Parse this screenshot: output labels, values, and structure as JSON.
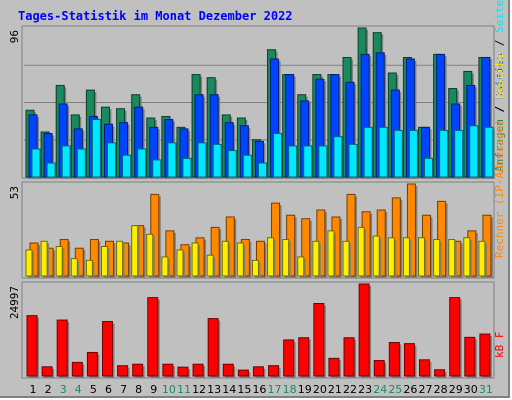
{
  "title": "Tages-Statistik im Monat Dezember 2022",
  "colors": {
    "background": "#c0c0c0",
    "title": "#0000ff",
    "anfragen": "#1a8a5e",
    "dateien": "#0044ff",
    "seiten": "#00e8ff",
    "rechner": "#ff8800",
    "besuche": "#ffee00",
    "kbf": "#ff0000",
    "day_weekday": "#000000",
    "day_weekend": "#1a8a5e"
  },
  "legend": {
    "top": [
      {
        "text": "Anfragen",
        "color": "#1a8a5e"
      },
      {
        "text": " / ",
        "color": "#000000"
      },
      {
        "text": "Dateien",
        "color": "#0044ff"
      },
      {
        "text": " / ",
        "color": "#000000"
      },
      {
        "text": "Seiten",
        "color": "#00e8ff"
      }
    ],
    "middle": [
      {
        "text": "Rechner (IP-Adressen)",
        "color": "#ff8800"
      },
      {
        "text": " / ",
        "color": "#000000"
      },
      {
        "text": "Besuche",
        "color": "#ffee00"
      }
    ],
    "bottom": [
      {
        "text": "kB F",
        "color": "#ff0000"
      }
    ]
  },
  "chart_data": [
    {
      "type": "bar",
      "name": "Anfragen / Dateien / Seiten",
      "ymax_label": "96",
      "ylim": [
        0,
        96
      ],
      "categories": [
        "1",
        "2",
        "3",
        "4",
        "5",
        "6",
        "7",
        "8",
        "9",
        "10",
        "11",
        "12",
        "13",
        "14",
        "15",
        "16",
        "17",
        "18",
        "19",
        "20",
        "21",
        "22",
        "23",
        "24",
        "25",
        "26",
        "27",
        "28",
        "29",
        "30",
        "31"
      ],
      "weekend_days": [
        "3",
        "4",
        "10",
        "11",
        "17",
        "18",
        "24",
        "25",
        "31"
      ],
      "series": [
        {
          "name": "Anfragen",
          "values": [
            43,
            29,
            59,
            40,
            56,
            45,
            44,
            53,
            38,
            39,
            32,
            66,
            64,
            40,
            38,
            24,
            82,
            66,
            53,
            66,
            66,
            77,
            96,
            93,
            67,
            77,
            32,
            79,
            57,
            68,
            77
          ]
        },
        {
          "name": "Dateien",
          "values": [
            40,
            28,
            47,
            31,
            39,
            34,
            35,
            45,
            32,
            37,
            31,
            53,
            53,
            35,
            33,
            23,
            76,
            66,
            49,
            63,
            66,
            61,
            79,
            80,
            56,
            76,
            32,
            79,
            47,
            59,
            77
          ]
        },
        {
          "name": "Seiten",
          "values": [
            18,
            9,
            20,
            18,
            37,
            22,
            14,
            18,
            11,
            22,
            12,
            22,
            21,
            17,
            14,
            9,
            28,
            20,
            20,
            20,
            26,
            21,
            32,
            32,
            30,
            30,
            12,
            30,
            30,
            33,
            32
          ]
        }
      ]
    },
    {
      "type": "bar",
      "name": "Rechner / Besuche",
      "ymax_label": "53",
      "ylim": [
        0,
        53
      ],
      "categories": [
        "1",
        "2",
        "3",
        "4",
        "5",
        "6",
        "7",
        "8",
        "9",
        "10",
        "11",
        "12",
        "13",
        "14",
        "15",
        "16",
        "17",
        "18",
        "19",
        "20",
        "21",
        "22",
        "23",
        "24",
        "25",
        "26",
        "27",
        "28",
        "29",
        "30",
        "31"
      ],
      "series": [
        {
          "name": "Rechner (IP-Adressen)",
          "values": [
            19,
            16,
            21,
            16,
            21,
            20,
            19,
            29,
            47,
            26,
            18,
            22,
            28,
            34,
            21,
            20,
            42,
            35,
            33,
            38,
            34,
            47,
            37,
            38,
            45,
            53,
            35,
            43,
            20,
            26,
            35
          ]
        },
        {
          "name": "Besuche",
          "values": [
            15,
            20,
            17,
            10,
            9,
            17,
            20,
            29,
            24,
            11,
            15,
            19,
            12,
            20,
            19,
            9,
            22,
            21,
            11,
            20,
            26,
            20,
            28,
            23,
            22,
            22,
            22,
            21,
            21,
            22,
            20
          ]
        }
      ]
    },
    {
      "type": "bar",
      "name": "kB F",
      "ymax_label": "24997",
      "ylim": [
        0,
        24997
      ],
      "categories": [
        "1",
        "2",
        "3",
        "4",
        "5",
        "6",
        "7",
        "8",
        "9",
        "10",
        "11",
        "12",
        "13",
        "14",
        "15",
        "16",
        "17",
        "18",
        "19",
        "20",
        "21",
        "22",
        "23",
        "24",
        "25",
        "26",
        "27",
        "28",
        "29",
        "30",
        "31"
      ],
      "series": [
        {
          "name": "kB F",
          "values": [
            16400,
            2500,
            15200,
            3700,
            6400,
            14800,
            2800,
            3200,
            21300,
            3200,
            2400,
            3200,
            15600,
            3200,
            1600,
            2500,
            2800,
            9800,
            10400,
            19700,
            4800,
            10400,
            24997,
            4200,
            9100,
            8800,
            4400,
            1700,
            21300,
            10500,
            11400
          ]
        }
      ]
    }
  ]
}
